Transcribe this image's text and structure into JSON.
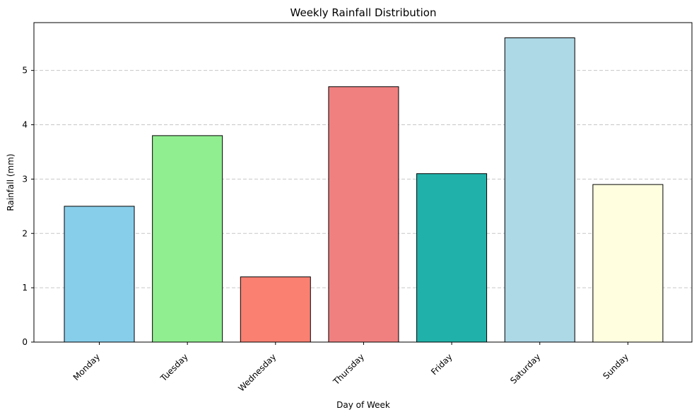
{
  "chart_data": {
    "type": "bar",
    "title": "Weekly Rainfall Distribution",
    "xlabel": "Day of Week",
    "ylabel": "Rainfall (mm)",
    "categories": [
      "Monday",
      "Tuesday",
      "Wednesday",
      "Thursday",
      "Friday",
      "Saturday",
      "Sunday"
    ],
    "values": [
      2.5,
      3.8,
      1.2,
      4.7,
      3.1,
      5.6,
      2.9
    ],
    "colors": [
      "#87ceeb",
      "#90ee90",
      "#fa8072",
      "#f08080",
      "#20b2aa",
      "#add8e6",
      "#ffffe0"
    ],
    "edge_color": "#000000",
    "ylim": [
      0,
      5.88
    ],
    "yticks": [
      0,
      1,
      2,
      3,
      4,
      5
    ],
    "ytick_labels": [
      "0",
      "1",
      "2",
      "3",
      "4",
      "5"
    ],
    "grid": {
      "axis": "y",
      "style": "dashed",
      "color": "#c7c7c7"
    },
    "legend": "none"
  }
}
